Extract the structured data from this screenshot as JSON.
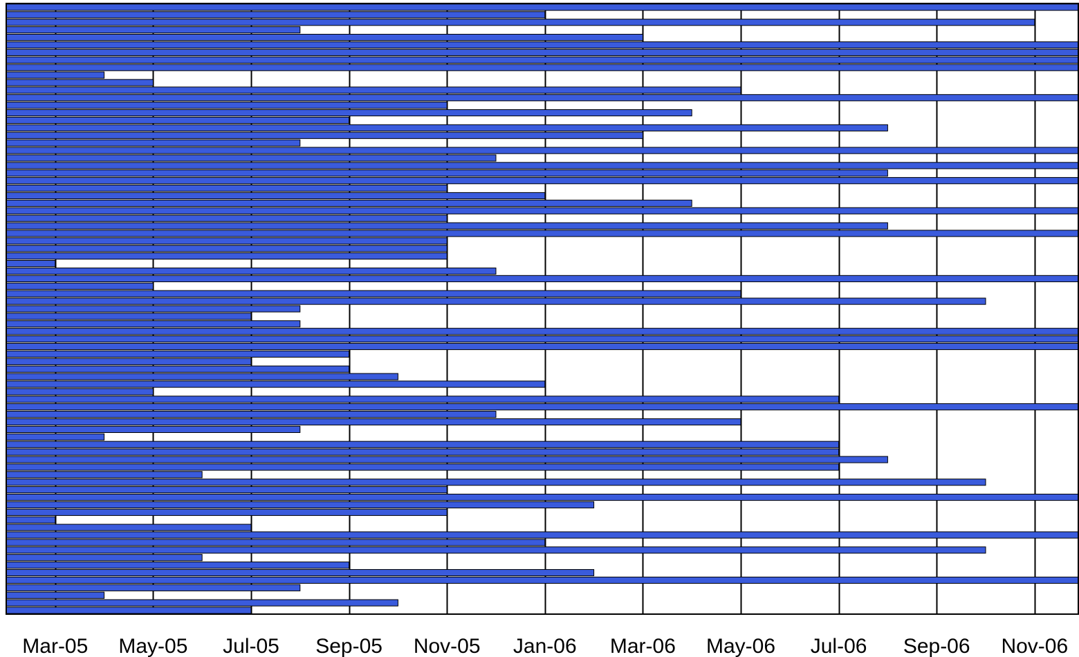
{
  "chart_data": {
    "type": "bar",
    "orientation": "horizontal",
    "title": "",
    "xlabel": "",
    "ylabel": "",
    "x_scale": "time",
    "x_tick_labels": [
      "Mar-05",
      "May-05",
      "Jul-05",
      "Sep-05",
      "Nov-05",
      "Jan-06",
      "Mar-06",
      "May-06",
      "Jul-06",
      "Sep-06",
      "Nov-06"
    ],
    "x_ticks": [
      "2005-03",
      "2005-05",
      "2005-07",
      "2005-09",
      "2005-11",
      "2006-01",
      "2006-03",
      "2006-05",
      "2006-07",
      "2006-09",
      "2006-11"
    ],
    "xlim": [
      "2005-02",
      "2006-12"
    ],
    "grid": true,
    "bar_start": "2005-02",
    "bar_color": "#3a5bdc",
    "bar_edge_color": "#000000",
    "bars_end": [
      "2006-12",
      "2006-01",
      "2006-11",
      "2005-08",
      "2006-03",
      "2006-12",
      "2006-12",
      "2006-12",
      "2006-12",
      "2005-04",
      "2005-05",
      "2006-05",
      "2006-12",
      "2005-11",
      "2006-04",
      "2005-09",
      "2006-08",
      "2006-03",
      "2005-08",
      "2006-12",
      "2005-12",
      "2006-12",
      "2006-08",
      "2006-12",
      "2005-11",
      "2006-01",
      "2006-04",
      "2006-12",
      "2005-11",
      "2006-08",
      "2006-12",
      "2005-11",
      "2005-11",
      "2005-11",
      "2005-03",
      "2005-12",
      "2006-12",
      "2005-05",
      "2006-05",
      "2006-10",
      "2005-08",
      "2005-07",
      "2005-08",
      "2006-12",
      "2006-12",
      "2006-12",
      "2005-09",
      "2005-07",
      "2005-09",
      "2005-10",
      "2006-01",
      "2005-05",
      "2006-07",
      "2006-12",
      "2005-12",
      "2006-05",
      "2005-08",
      "2005-04",
      "2006-07",
      "2006-07",
      "2006-08",
      "2006-07",
      "2005-06",
      "2006-10",
      "2005-11",
      "2006-12",
      "2006-02",
      "2005-11",
      "2005-03",
      "2005-07",
      "2006-12",
      "2006-01",
      "2006-10",
      "2005-06",
      "2005-09",
      "2006-02",
      "2006-12",
      "2005-08",
      "2005-04",
      "2005-10",
      "2005-07"
    ]
  }
}
